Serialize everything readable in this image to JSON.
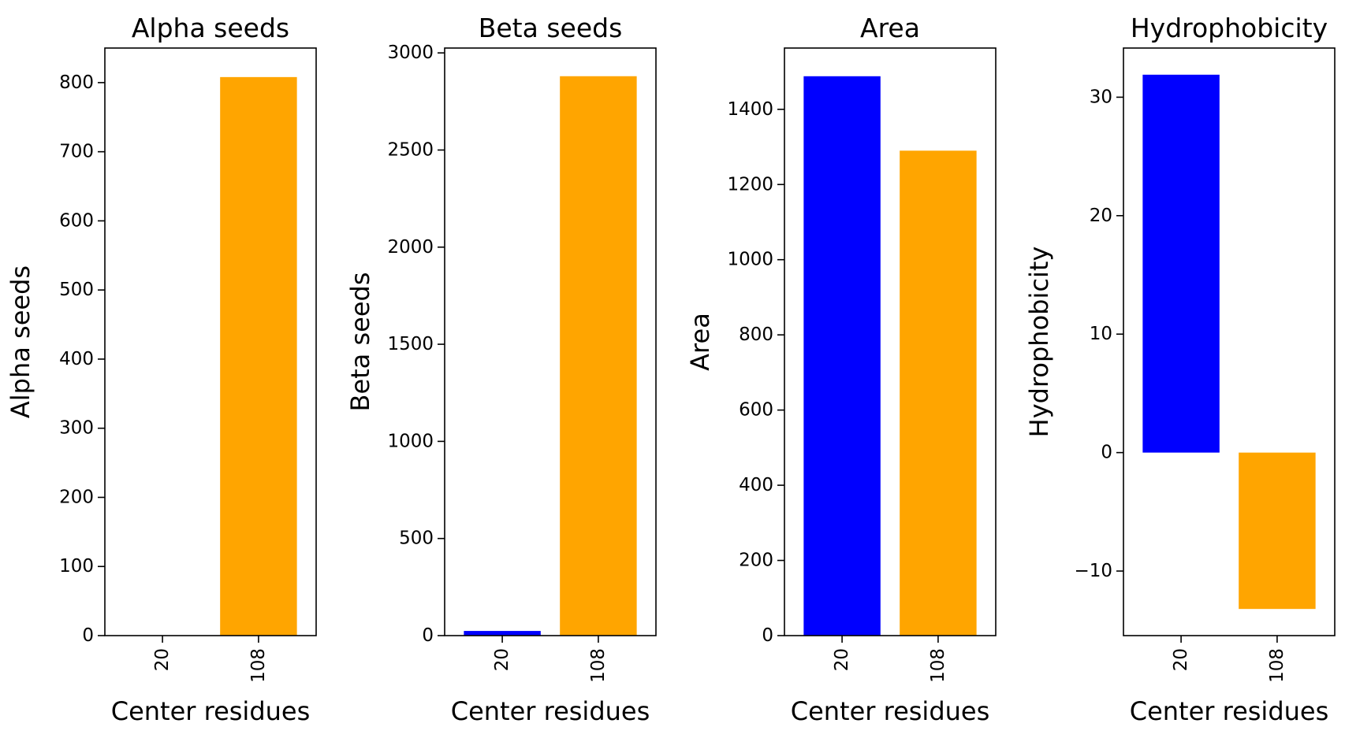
{
  "chart_data": [
    {
      "type": "bar",
      "title": "Alpha seeds",
      "xlabel": "Center residues",
      "ylabel": "Alpha seeds",
      "categories": [
        "20",
        "108"
      ],
      "values": [
        0,
        808
      ],
      "colors": [
        "#0000ff",
        "#ffa500"
      ],
      "ylim": [
        0,
        850
      ],
      "yticks": [
        0,
        100,
        200,
        300,
        400,
        500,
        600,
        700,
        800
      ],
      "ytick_labels": [
        "0",
        "100",
        "200",
        "300",
        "400",
        "500",
        "600",
        "700",
        "800"
      ],
      "grid": false,
      "legend": "none"
    },
    {
      "type": "bar",
      "title": "Beta seeds",
      "xlabel": "Center residues",
      "ylabel": "Beta seeds",
      "categories": [
        "20",
        "108"
      ],
      "values": [
        24,
        2880
      ],
      "colors": [
        "#0000ff",
        "#ffa500"
      ],
      "ylim": [
        0,
        3025
      ],
      "yticks": [
        0,
        500,
        1000,
        1500,
        2000,
        2500,
        3000
      ],
      "ytick_labels": [
        "0",
        "500",
        "1000",
        "1500",
        "2000",
        "2500",
        "3000"
      ],
      "grid": false,
      "legend": "none"
    },
    {
      "type": "bar",
      "title": "Area",
      "xlabel": "Center residues",
      "ylabel": "Area",
      "categories": [
        "20",
        "108"
      ],
      "values": [
        1488,
        1290
      ],
      "colors": [
        "#0000ff",
        "#ffa500"
      ],
      "ylim": [
        0,
        1563
      ],
      "yticks": [
        0,
        200,
        400,
        600,
        800,
        1000,
        1200,
        1400
      ],
      "ytick_labels": [
        "0",
        "200",
        "400",
        "600",
        "800",
        "1000",
        "1200",
        "1400"
      ],
      "grid": false,
      "legend": "none"
    },
    {
      "type": "bar",
      "title": "Hydrophobicity",
      "xlabel": "Center residues",
      "ylabel": "Hydrophobicity",
      "categories": [
        "20",
        "108"
      ],
      "values": [
        31.9,
        -13.2
      ],
      "colors": [
        "#0000ff",
        "#ffa500"
      ],
      "ylim": [
        -15.45,
        34.15
      ],
      "yticks": [
        -10,
        0,
        10,
        20,
        30
      ],
      "ytick_labels": [
        "−10",
        "0",
        "10",
        "20",
        "30"
      ],
      "grid": false,
      "legend": "none"
    }
  ]
}
